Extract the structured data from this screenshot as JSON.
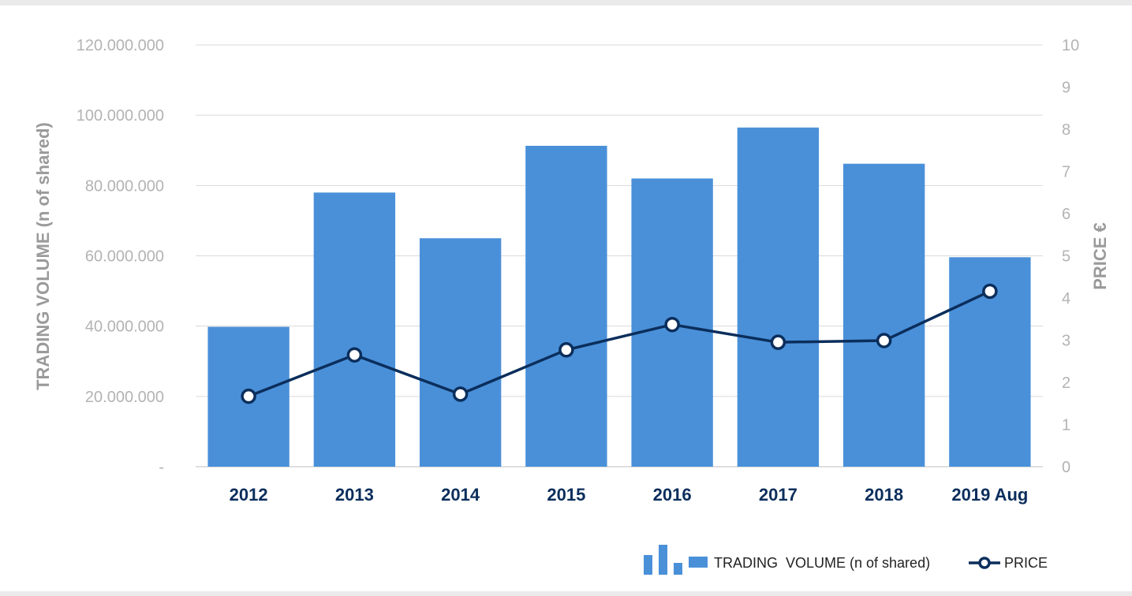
{
  "chart_data": {
    "type": "bar",
    "categories": [
      "2012",
      "2013",
      "2014",
      "2015",
      "2016",
      "2017",
      "2018",
      "2019 Aug"
    ],
    "series": [
      {
        "name": "TRADING  VOLUME (n of shared)",
        "type": "bar",
        "axis": "left",
        "color": "#4a90d9",
        "values": [
          39800000,
          78000000,
          65000000,
          91300000,
          82000000,
          96500000,
          86200000,
          59600000
        ]
      },
      {
        "name": "PRICE",
        "type": "line",
        "axis": "right",
        "color": "#0b2e5c",
        "values": [
          1.67,
          2.65,
          1.72,
          2.77,
          3.37,
          2.95,
          2.99,
          4.16
        ]
      }
    ],
    "ylabel": "TRADING  VOLUME (n of shared)",
    "y2label": "PRICE €",
    "ylim": [
      0,
      120000000
    ],
    "y2lim": [
      0,
      10
    ],
    "yticks": [
      0,
      20000000,
      40000000,
      60000000,
      80000000,
      100000000,
      120000000
    ],
    "ytick_labels": [
      "-",
      "20.000.000",
      "40.000.000",
      "60.000.000",
      "80.000.000",
      "100.000.000",
      "120.000.000"
    ],
    "y2ticks": [
      0,
      1,
      2,
      3,
      4,
      5,
      6,
      7,
      8,
      9,
      10
    ],
    "y2tick_labels": [
      "0",
      "1",
      "2",
      "3",
      "4",
      "5",
      "6",
      "7",
      "8",
      "9",
      "10"
    ],
    "grid": true,
    "legend": "bottom-right"
  }
}
